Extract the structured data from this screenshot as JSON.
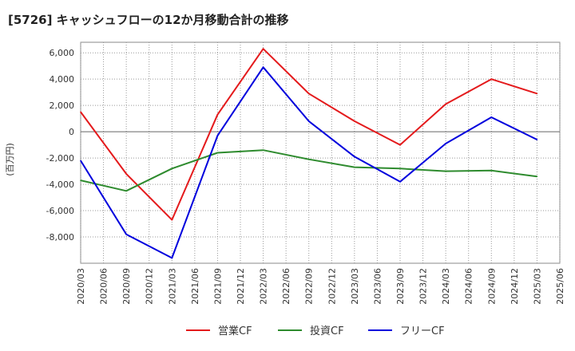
{
  "chart_data": {
    "type": "line",
    "title": "[5726]  キャッシュフローの12か月移動合計の推移",
    "ylabel": "(百万円)",
    "xlabel": "",
    "ylim": [
      -10000,
      6800
    ],
    "yticks": [
      6000,
      4000,
      2000,
      0,
      -2000,
      -4000,
      -6000,
      -8000
    ],
    "ytick_labels": [
      "6,000",
      "4,000",
      "2,000",
      "0",
      "-2,000",
      "-4,000",
      "-6,000",
      "-8,000"
    ],
    "categories": [
      "2020/03",
      "2020/06",
      "2020/09",
      "2020/12",
      "2021/03",
      "2021/06",
      "2021/09",
      "2021/12",
      "2022/03",
      "2022/06",
      "2022/09",
      "2022/12",
      "2023/03",
      "2023/06",
      "2023/09",
      "2023/12",
      "2024/03",
      "2024/06",
      "2024/09",
      "2024/12",
      "2025/03",
      "2025/06"
    ],
    "grid": true,
    "legend_position": "bottom",
    "series": [
      {
        "name": "営業CF",
        "color": "#e41a1c",
        "x": [
          "2020/03",
          "2020/09",
          "2021/03",
          "2021/09",
          "2022/03",
          "2022/09",
          "2023/03",
          "2023/09",
          "2024/03",
          "2024/09",
          "2025/03"
        ],
        "values": [
          1500,
          -3200,
          -6700,
          1300,
          6300,
          2900,
          800,
          -1000,
          2100,
          4000,
          2900
        ]
      },
      {
        "name": "投資CF",
        "color": "#2e8b2e",
        "x": [
          "2020/03",
          "2020/09",
          "2021/03",
          "2021/09",
          "2022/03",
          "2022/09",
          "2023/03",
          "2023/09",
          "2024/03",
          "2024/09",
          "2025/03"
        ],
        "values": [
          -3700,
          -4500,
          -2800,
          -1600,
          -1400,
          -2100,
          -2700,
          -2800,
          -3000,
          -2950,
          -3400
        ]
      },
      {
        "name": "フリーCF",
        "color": "#0000dd",
        "x": [
          "2020/03",
          "2020/09",
          "2021/03",
          "2021/09",
          "2022/03",
          "2022/09",
          "2023/03",
          "2023/09",
          "2024/03",
          "2024/09",
          "2025/03"
        ],
        "values": [
          -2200,
          -7800,
          -9600,
          -300,
          4900,
          800,
          -1900,
          -3800,
          -900,
          1100,
          -600
        ]
      }
    ]
  }
}
